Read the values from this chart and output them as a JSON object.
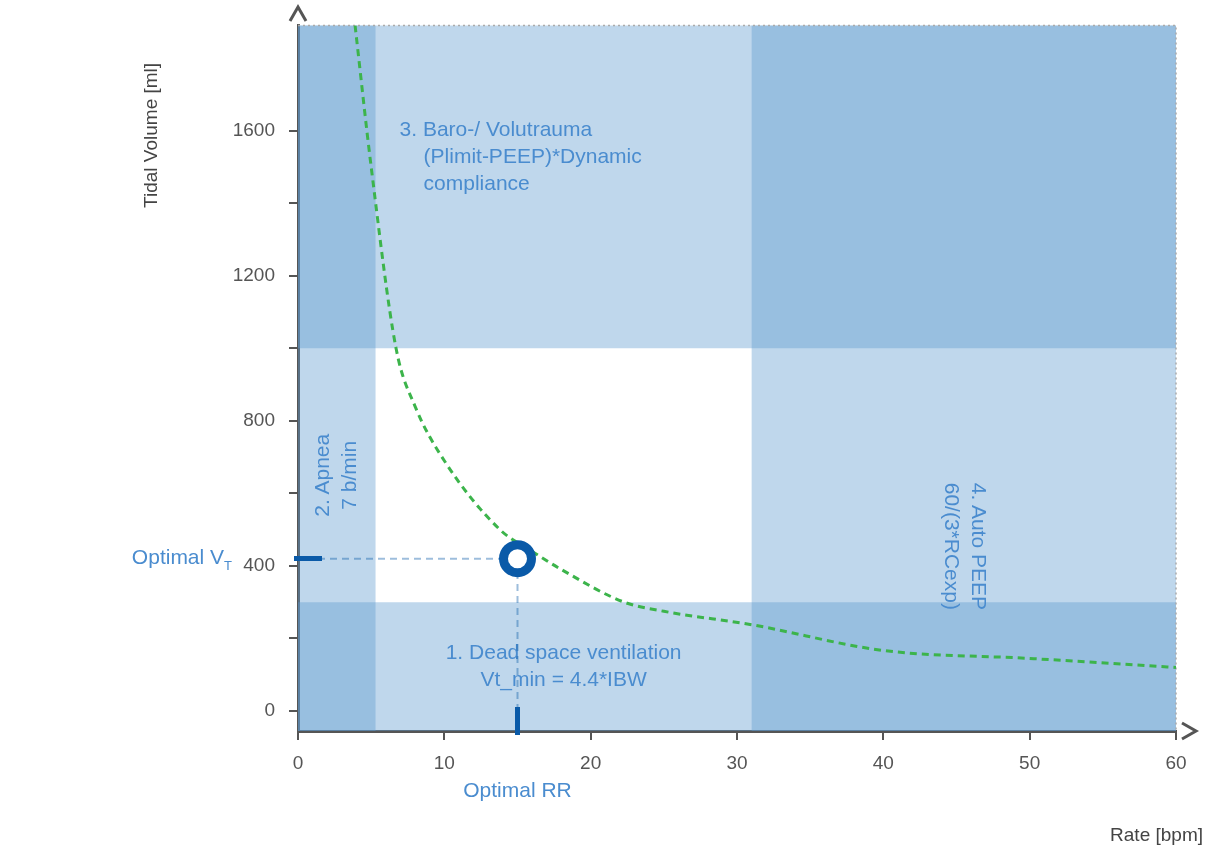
{
  "chart_data": {
    "type": "line",
    "xlabel": "Rate [bpm]",
    "ylabel": "Tidal Volume [ml]",
    "xlim": [
      0,
      60
    ],
    "ylim": [
      -55,
      1890
    ],
    "xticks": [
      0,
      10,
      20,
      30,
      40,
      50,
      60
    ],
    "yticks": [
      0,
      {
        "value": 200,
        "label": null
      },
      400,
      {
        "value": 600,
        "label": null
      },
      800,
      {
        "value": 1000,
        "label": null
      },
      1200,
      {
        "value": 1400,
        "label": null
      },
      1600
    ],
    "series": [
      {
        "type": "line",
        "color": "#3cb44b",
        "line_style": "dashed",
        "marker": "none",
        "x": [
          3.9,
          5,
          6.7,
          8,
          10,
          13.8,
          16,
          18,
          22.3,
          25,
          31,
          40,
          50,
          60
        ],
        "values": [
          1890,
          1500,
          1000,
          840,
          690,
          500,
          440,
          390,
          300,
          275,
          238,
          167,
          145,
          120
        ]
      },
      {
        "type": "scatter",
        "color": "#0a5aa8",
        "marker": "circle",
        "x": [
          15
        ],
        "values": [
          420
        ]
      }
    ],
    "bands": [
      {
        "axis": "x",
        "from": 0,
        "to": 5.3,
        "label": "2. Apnea\n7 b/min",
        "color": "#5f9bd0"
      },
      {
        "axis": "x",
        "from": 31,
        "to": 60,
        "label": "4. Auto PEEP\n60/(3*RCexp)",
        "color": "#5f9bd0"
      },
      {
        "axis": "y",
        "from": -55,
        "to": 300,
        "label": "1. Dead space ventilation\nVt_min = 4.4*IBW",
        "color": "#5f9bd0"
      },
      {
        "axis": "y",
        "from": 1000,
        "to": 1890,
        "label": "3. Baro-/ Volutrauma\n(Plimit-PEEP)*Dynamic\ncompliance",
        "color": "#5f9bd0"
      }
    ],
    "ref_lines": [
      {
        "axis": "y",
        "value": 420,
        "label": "Optimal V$_{T}$",
        "color": "#0a5aa8",
        "line_style": "dashed"
      },
      {
        "axis": "x",
        "value": 15,
        "label": "Optimal RR",
        "color": "#0a5aa8",
        "line_style": "dashed"
      }
    ],
    "grid": false,
    "legend": false
  }
}
